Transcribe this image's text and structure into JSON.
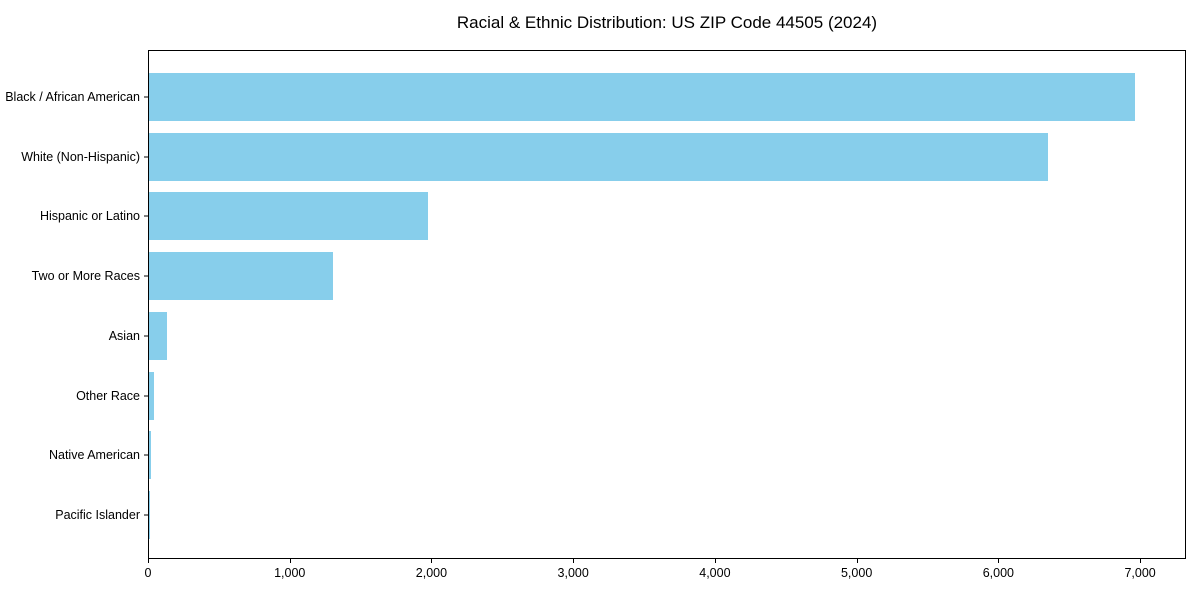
{
  "chart_data": {
    "type": "bar",
    "orientation": "horizontal",
    "title": "Racial & Ethnic Distribution: US ZIP Code 44505 (2024)",
    "categories": [
      "Black / African American",
      "White (Non-Hispanic)",
      "Hispanic or Latino",
      "Two or More Races",
      "Asian",
      "Other Race",
      "Native American",
      "Pacific Islander"
    ],
    "values": [
      6960,
      6340,
      1970,
      1300,
      130,
      35,
      15,
      3
    ],
    "xlabel": "",
    "ylabel": "",
    "xlim": [
      0,
      7324
    ],
    "xticks": [
      0,
      1000,
      2000,
      3000,
      4000,
      5000,
      6000,
      7000
    ],
    "xtick_labels": [
      "0",
      "1,000",
      "2,000",
      "3,000",
      "4,000",
      "5,000",
      "6,000",
      "7,000"
    ],
    "bar_color": "#87CEEB",
    "axis_color": "#000000",
    "background_color": "#ffffff",
    "grid": false,
    "legend": null
  }
}
